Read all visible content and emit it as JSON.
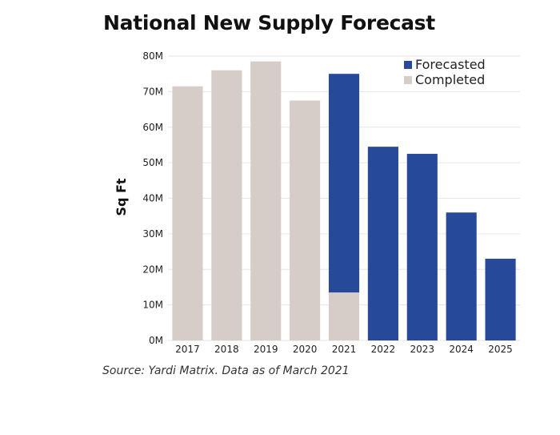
{
  "colors": {
    "completed": "#d6cdc9",
    "forecasted": "#27499a",
    "grid": "#e6e6e6"
  },
  "chart_data": {
    "type": "bar",
    "stacked": true,
    "title": "National New Supply Forecast",
    "xlabel": "",
    "ylabel": "Sq Ft",
    "ylim": [
      0,
      80000000
    ],
    "yticks": [
      {
        "value": 0,
        "label": "0M"
      },
      {
        "value": 10000000,
        "label": "10M"
      },
      {
        "value": 20000000,
        "label": "20M"
      },
      {
        "value": 30000000,
        "label": "30M"
      },
      {
        "value": 40000000,
        "label": "40M"
      },
      {
        "value": 50000000,
        "label": "50M"
      },
      {
        "value": 60000000,
        "label": "60M"
      },
      {
        "value": 70000000,
        "label": "70M"
      },
      {
        "value": 80000000,
        "label": "80M"
      }
    ],
    "categories": [
      "2017",
      "2018",
      "2019",
      "2020",
      "2021",
      "2022",
      "2023",
      "2024",
      "2025"
    ],
    "series": [
      {
        "name": "Completed",
        "color": "#d6cdc9",
        "values": [
          71500000,
          76000000,
          78500000,
          67500000,
          13500000,
          0,
          0,
          0,
          0
        ]
      },
      {
        "name": "Forecasted",
        "color": "#27499a",
        "values": [
          0,
          0,
          0,
          0,
          61500000,
          54500000,
          52500000,
          36000000,
          23000000
        ]
      }
    ],
    "legend": {
      "position": "top-right",
      "order": [
        "Forecasted",
        "Completed"
      ]
    },
    "grid": true
  },
  "source": "Source: Yardi Matrix. Data as of March 2021"
}
